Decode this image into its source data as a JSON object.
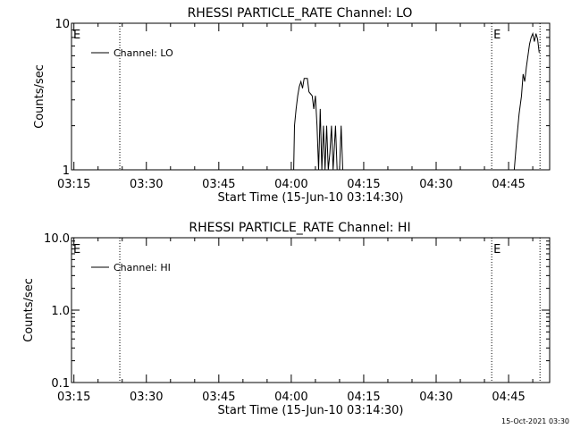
{
  "footer_timestamp": "15-Oct-2021 03:30",
  "chart_data": [
    {
      "type": "line",
      "title": "RHESSI PARTICLE_RATE Channel: LO",
      "xlabel": "Start Time (15-Jun-10 03:14:30)",
      "ylabel": "Counts/sec",
      "yscale": "log",
      "ylim": [
        1,
        10
      ],
      "y_ticks": [
        1,
        10
      ],
      "y_tick_labels": [
        "1",
        "10"
      ],
      "xlim": [
        "03:14:30",
        "04:53:30"
      ],
      "x_ticks": [
        "03:15",
        "03:30",
        "03:45",
        "04:00",
        "04:15",
        "04:30",
        "04:45"
      ],
      "legend": {
        "entries": [
          "Channel: LO"
        ],
        "placement": "top-left"
      },
      "event_markers": [
        {
          "time": "03:14:30",
          "label": "E",
          "style": "none"
        },
        {
          "time": "03:24:30",
          "label": "",
          "style": "dotted"
        },
        {
          "time": "04:41:30",
          "label": "E",
          "style": "dotted"
        },
        {
          "time": "04:51:30",
          "label": "",
          "style": "dotted"
        }
      ],
      "series": [
        {
          "name": "Channel: LO",
          "segments": [
            [
              [
                "04:00:30",
                1.0
              ],
              [
                "04:00:40",
                2.0
              ],
              [
                "04:01:00",
                2.6
              ],
              [
                "04:01:20",
                3.2
              ],
              [
                "04:01:40",
                3.7
              ],
              [
                "04:02:00",
                4.0
              ],
              [
                "04:02:20",
                3.6
              ],
              [
                "04:02:40",
                4.2
              ],
              [
                "04:03:00",
                4.2
              ],
              [
                "04:03:20",
                4.2
              ],
              [
                "04:03:40",
                3.4
              ],
              [
                "04:04:00",
                3.3
              ],
              [
                "04:04:20",
                3.2
              ],
              [
                "04:04:40",
                2.6
              ],
              [
                "04:05:00",
                3.2
              ],
              [
                "04:05:20",
                2.0
              ],
              [
                "04:05:40",
                1.0
              ],
              [
                "04:06:00",
                2.6
              ],
              [
                "04:06:20",
                1.0
              ],
              [
                "04:06:40",
                2.0
              ],
              [
                "04:07:00",
                1.0
              ],
              [
                "04:07:20",
                2.0
              ],
              [
                "04:07:40",
                1.0
              ],
              [
                "04:08:00",
                1.3
              ],
              [
                "04:08:20",
                2.0
              ],
              [
                "04:08:40",
                1.0
              ],
              [
                "04:09:10",
                2.0
              ],
              [
                "04:09:30",
                1.0
              ],
              [
                "04:10:00",
                1.0
              ],
              [
                "04:10:20",
                2.0
              ],
              [
                "04:10:40",
                1.0
              ]
            ],
            [
              [
                "04:46:10",
                1.0
              ],
              [
                "04:46:40",
                1.6
              ],
              [
                "04:47:10",
                2.4
              ],
              [
                "04:47:40",
                3.2
              ],
              [
                "04:48:00",
                4.5
              ],
              [
                "04:48:20",
                4.0
              ],
              [
                "04:48:40",
                5.0
              ],
              [
                "04:49:00",
                6.0
              ],
              [
                "04:49:20",
                7.2
              ],
              [
                "04:49:40",
                8.0
              ],
              [
                "04:50:00",
                8.5
              ],
              [
                "04:50:20",
                7.5
              ],
              [
                "04:50:40",
                8.5
              ],
              [
                "04:51:00",
                7.8
              ],
              [
                "04:51:20",
                6.3
              ]
            ]
          ]
        }
      ]
    },
    {
      "type": "line",
      "title": "RHESSI PARTICLE_RATE Channel: HI",
      "xlabel": "Start Time (15-Jun-10 03:14:30)",
      "ylabel": "Counts/sec",
      "yscale": "log",
      "ylim": [
        0.1,
        10
      ],
      "y_ticks": [
        0.1,
        1,
        10
      ],
      "y_tick_labels": [
        "0.1",
        "1.0",
        "10.0"
      ],
      "xlim": [
        "03:14:30",
        "04:53:30"
      ],
      "x_ticks": [
        "03:15",
        "03:30",
        "03:45",
        "04:00",
        "04:15",
        "04:30",
        "04:45"
      ],
      "legend": {
        "entries": [
          "Channel: HI"
        ],
        "placement": "top-left"
      },
      "event_markers": [
        {
          "time": "03:14:30",
          "label": "E",
          "style": "none"
        },
        {
          "time": "03:24:30",
          "label": "",
          "style": "dotted"
        },
        {
          "time": "04:41:30",
          "label": "E",
          "style": "dotted"
        },
        {
          "time": "04:51:30",
          "label": "",
          "style": "dotted"
        }
      ],
      "series": [
        {
          "name": "Channel: HI",
          "segments": []
        }
      ]
    }
  ]
}
